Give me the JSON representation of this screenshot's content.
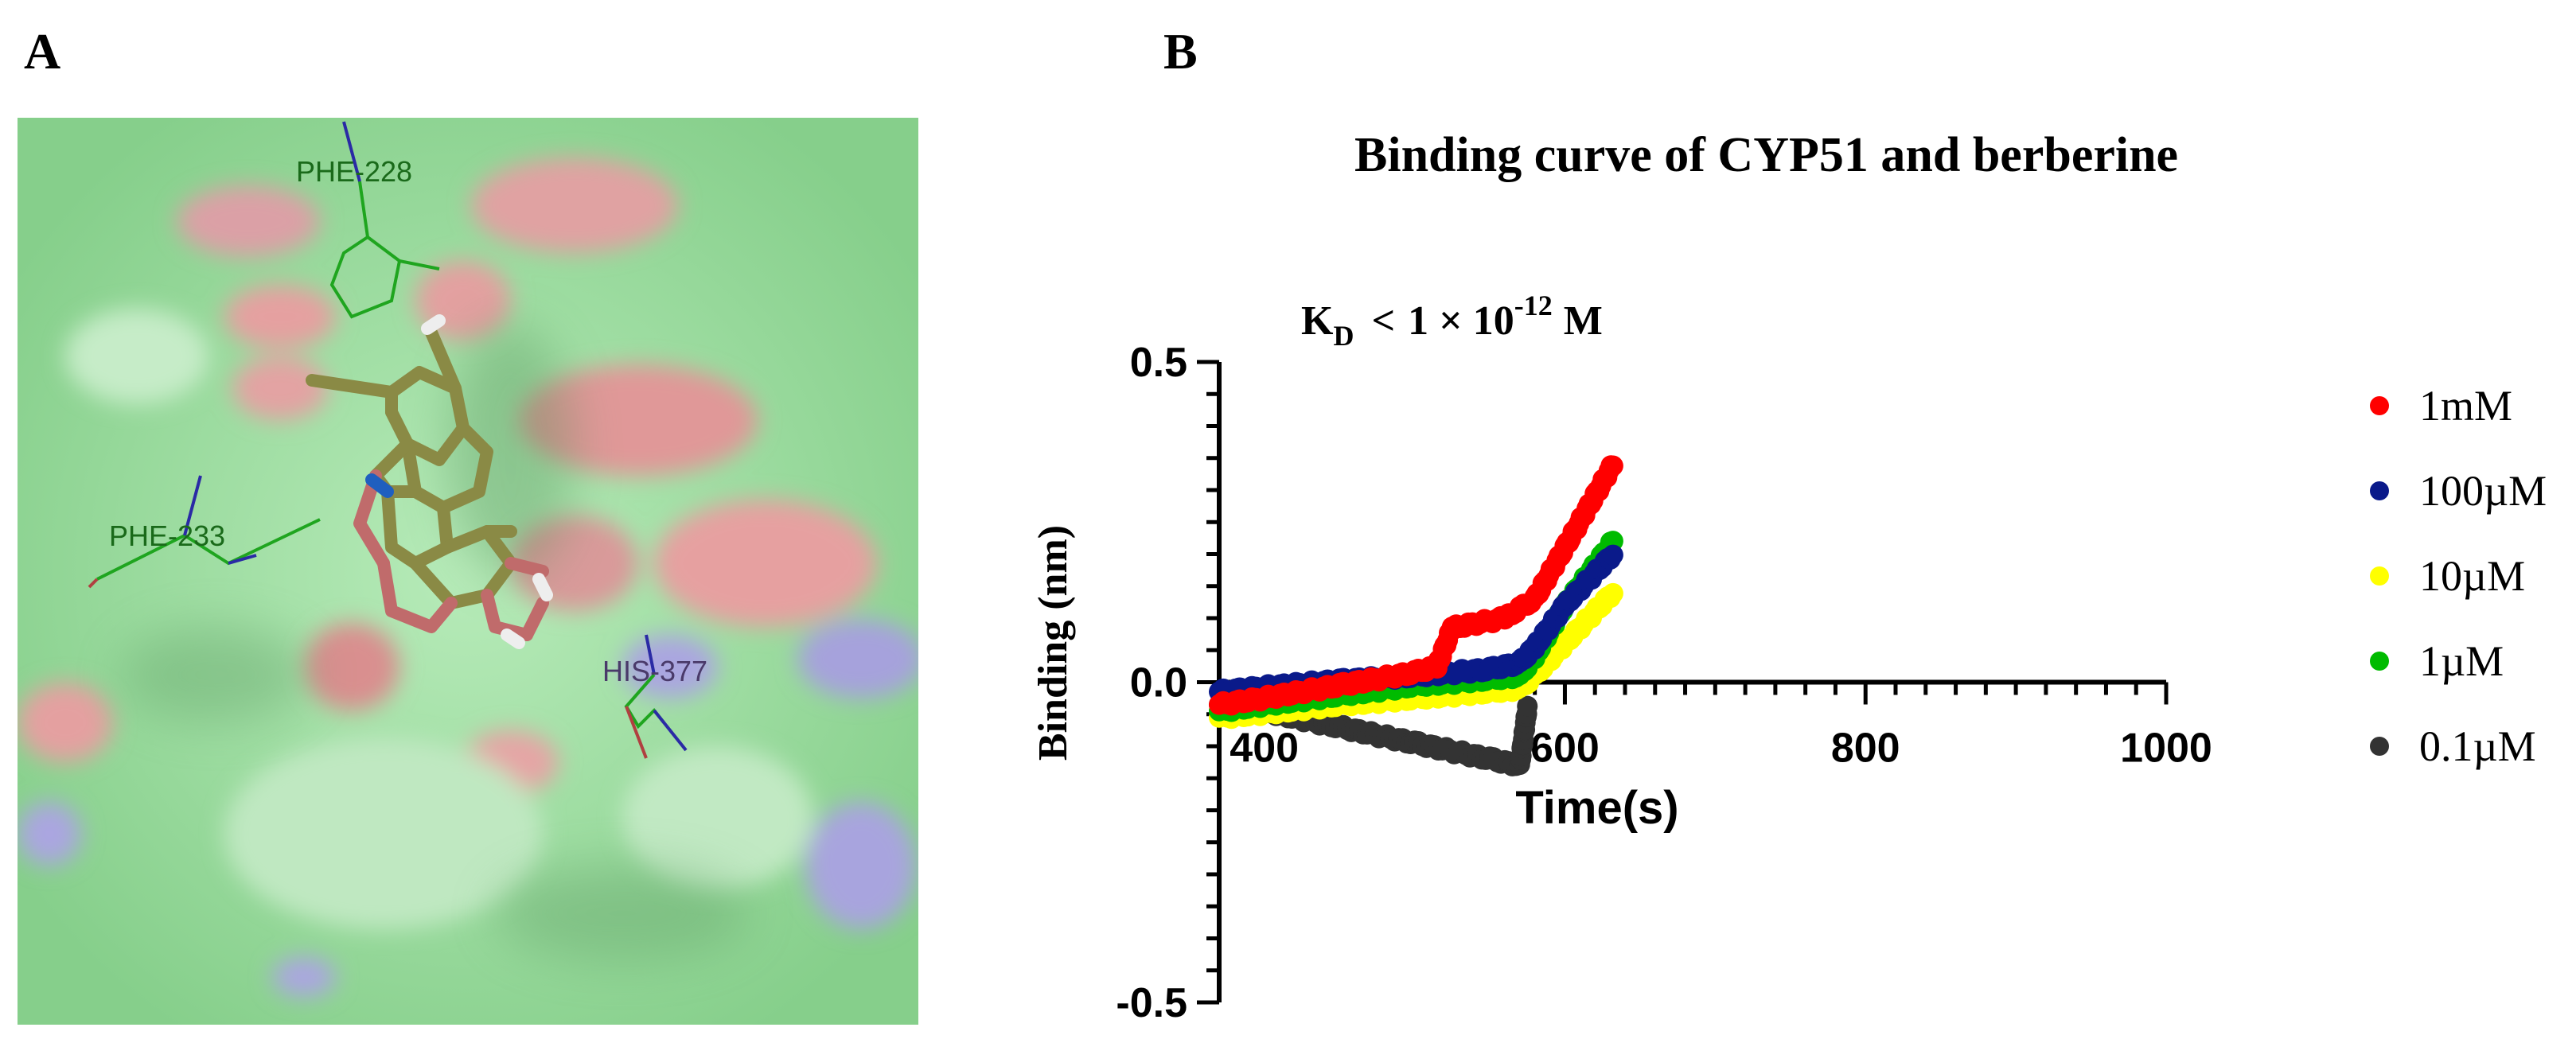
{
  "panels": {
    "a_label": "A",
    "b_label": "B"
  },
  "residues": [
    {
      "name": "PHE-228"
    },
    {
      "name": "PHE-233"
    },
    {
      "name": "HIS-377"
    }
  ],
  "colors": {
    "surface_green": "#9fe0a3",
    "surface_red": "#e8a2a2",
    "surface_blue": "#a3a3e0",
    "residue_line": "#1fa51f",
    "ligand": "#8a8a45",
    "ligand_o": "#c06b6b",
    "ligand_n": "#1f5fbf"
  },
  "chart_data": {
    "type": "scatter",
    "title": "Binding curve of CYP51 and berberine",
    "kd_label": {
      "prefix": "K",
      "subscript": "D",
      "relation": "<",
      "value_text": "1 × 10",
      "exponent": "-12",
      "unit": "M"
    },
    "xlabel": "Time(s)",
    "ylabel": "Binding (nm)",
    "xlim": [
      370,
      1000
    ],
    "ylim": [
      -0.5,
      0.5
    ],
    "x_ticks": [
      400,
      600,
      800,
      1000
    ],
    "y_ticks": [
      0.5,
      0.0,
      -0.5
    ],
    "y_tick_labels": [
      "0.5",
      "0.0",
      "-0.5"
    ],
    "legend_position": "right",
    "series": [
      {
        "name": "1mM",
        "color": "#ff0000",
        "x": [
          370,
          400,
          450,
          500,
          515,
          525,
          560,
          570,
          580,
          600,
          632
        ],
        "y": [
          -0.035,
          -0.025,
          -0.005,
          0.015,
          0.025,
          0.085,
          0.1,
          0.115,
          0.13,
          0.21,
          0.34
        ]
      },
      {
        "name": "100µM",
        "color": "#0a1a8a",
        "x": [
          370,
          400,
          450,
          500,
          550,
          570,
          580,
          600,
          632
        ],
        "y": [
          -0.015,
          -0.008,
          0.002,
          0.01,
          0.02,
          0.03,
          0.055,
          0.12,
          0.2
        ]
      },
      {
        "name": "10µM",
        "color": "#ffff00",
        "x": [
          370,
          400,
          450,
          500,
          550,
          570,
          580,
          600,
          632
        ],
        "y": [
          -0.055,
          -0.048,
          -0.035,
          -0.025,
          -0.015,
          -0.01,
          0.01,
          0.06,
          0.14
        ]
      },
      {
        "name": "1µM",
        "color": "#00bb00",
        "x": [
          370,
          400,
          450,
          500,
          550,
          570,
          580,
          600,
          632
        ],
        "y": [
          -0.045,
          -0.035,
          -0.02,
          -0.005,
          0.005,
          0.01,
          0.04,
          0.12,
          0.22
        ]
      },
      {
        "name": "0.1µM",
        "color": "#333333",
        "x": [
          370,
          400,
          450,
          500,
          550,
          570,
          575
        ],
        "y": [
          -0.035,
          -0.045,
          -0.07,
          -0.095,
          -0.12,
          -0.13,
          -0.04
        ]
      }
    ]
  }
}
